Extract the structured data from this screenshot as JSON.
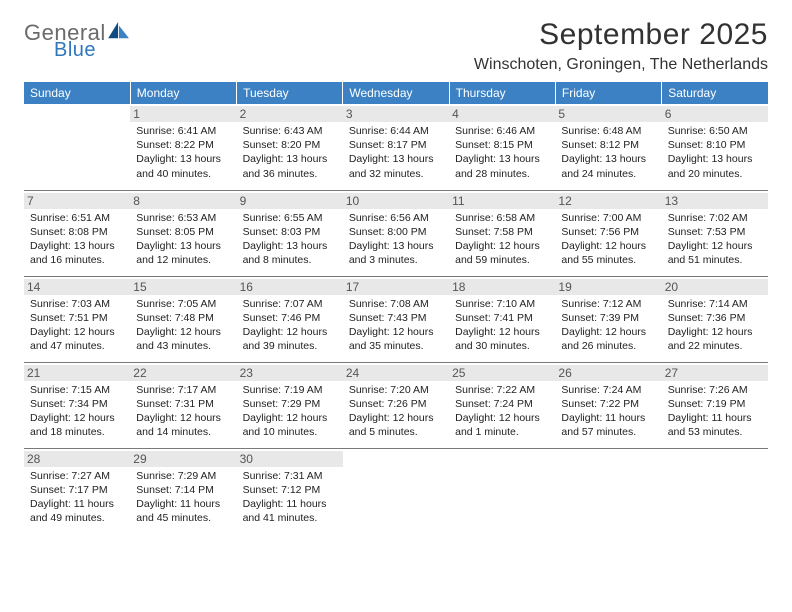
{
  "logo": {
    "word1": "General",
    "word2": "Blue"
  },
  "title": "September 2025",
  "location": "Winschoten, Groningen, The Netherlands",
  "day_headers": [
    "Sunday",
    "Monday",
    "Tuesday",
    "Wednesday",
    "Thursday",
    "Friday",
    "Saturday"
  ],
  "colors": {
    "header_bg": "#3b81c3",
    "header_text": "#ffffff",
    "daynum_bg": "#e8e8e8",
    "cell_border": "#7a7a7a",
    "logo_gray": "#6a6a6a",
    "logo_blue": "#2f77bd",
    "sail_dark": "#0f4c81",
    "sail_light": "#3b81c3"
  },
  "weeks": [
    [
      {
        "n": "",
        "sunrise": "",
        "sunset": "",
        "daylight": ""
      },
      {
        "n": "1",
        "sunrise": "Sunrise: 6:41 AM",
        "sunset": "Sunset: 8:22 PM",
        "daylight": "Daylight: 13 hours and 40 minutes."
      },
      {
        "n": "2",
        "sunrise": "Sunrise: 6:43 AM",
        "sunset": "Sunset: 8:20 PM",
        "daylight": "Daylight: 13 hours and 36 minutes."
      },
      {
        "n": "3",
        "sunrise": "Sunrise: 6:44 AM",
        "sunset": "Sunset: 8:17 PM",
        "daylight": "Daylight: 13 hours and 32 minutes."
      },
      {
        "n": "4",
        "sunrise": "Sunrise: 6:46 AM",
        "sunset": "Sunset: 8:15 PM",
        "daylight": "Daylight: 13 hours and 28 minutes."
      },
      {
        "n": "5",
        "sunrise": "Sunrise: 6:48 AM",
        "sunset": "Sunset: 8:12 PM",
        "daylight": "Daylight: 13 hours and 24 minutes."
      },
      {
        "n": "6",
        "sunrise": "Sunrise: 6:50 AM",
        "sunset": "Sunset: 8:10 PM",
        "daylight": "Daylight: 13 hours and 20 minutes."
      }
    ],
    [
      {
        "n": "7",
        "sunrise": "Sunrise: 6:51 AM",
        "sunset": "Sunset: 8:08 PM",
        "daylight": "Daylight: 13 hours and 16 minutes."
      },
      {
        "n": "8",
        "sunrise": "Sunrise: 6:53 AM",
        "sunset": "Sunset: 8:05 PM",
        "daylight": "Daylight: 13 hours and 12 minutes."
      },
      {
        "n": "9",
        "sunrise": "Sunrise: 6:55 AM",
        "sunset": "Sunset: 8:03 PM",
        "daylight": "Daylight: 13 hours and 8 minutes."
      },
      {
        "n": "10",
        "sunrise": "Sunrise: 6:56 AM",
        "sunset": "Sunset: 8:00 PM",
        "daylight": "Daylight: 13 hours and 3 minutes."
      },
      {
        "n": "11",
        "sunrise": "Sunrise: 6:58 AM",
        "sunset": "Sunset: 7:58 PM",
        "daylight": "Daylight: 12 hours and 59 minutes."
      },
      {
        "n": "12",
        "sunrise": "Sunrise: 7:00 AM",
        "sunset": "Sunset: 7:56 PM",
        "daylight": "Daylight: 12 hours and 55 minutes."
      },
      {
        "n": "13",
        "sunrise": "Sunrise: 7:02 AM",
        "sunset": "Sunset: 7:53 PM",
        "daylight": "Daylight: 12 hours and 51 minutes."
      }
    ],
    [
      {
        "n": "14",
        "sunrise": "Sunrise: 7:03 AM",
        "sunset": "Sunset: 7:51 PM",
        "daylight": "Daylight: 12 hours and 47 minutes."
      },
      {
        "n": "15",
        "sunrise": "Sunrise: 7:05 AM",
        "sunset": "Sunset: 7:48 PM",
        "daylight": "Daylight: 12 hours and 43 minutes."
      },
      {
        "n": "16",
        "sunrise": "Sunrise: 7:07 AM",
        "sunset": "Sunset: 7:46 PM",
        "daylight": "Daylight: 12 hours and 39 minutes."
      },
      {
        "n": "17",
        "sunrise": "Sunrise: 7:08 AM",
        "sunset": "Sunset: 7:43 PM",
        "daylight": "Daylight: 12 hours and 35 minutes."
      },
      {
        "n": "18",
        "sunrise": "Sunrise: 7:10 AM",
        "sunset": "Sunset: 7:41 PM",
        "daylight": "Daylight: 12 hours and 30 minutes."
      },
      {
        "n": "19",
        "sunrise": "Sunrise: 7:12 AM",
        "sunset": "Sunset: 7:39 PM",
        "daylight": "Daylight: 12 hours and 26 minutes."
      },
      {
        "n": "20",
        "sunrise": "Sunrise: 7:14 AM",
        "sunset": "Sunset: 7:36 PM",
        "daylight": "Daylight: 12 hours and 22 minutes."
      }
    ],
    [
      {
        "n": "21",
        "sunrise": "Sunrise: 7:15 AM",
        "sunset": "Sunset: 7:34 PM",
        "daylight": "Daylight: 12 hours and 18 minutes."
      },
      {
        "n": "22",
        "sunrise": "Sunrise: 7:17 AM",
        "sunset": "Sunset: 7:31 PM",
        "daylight": "Daylight: 12 hours and 14 minutes."
      },
      {
        "n": "23",
        "sunrise": "Sunrise: 7:19 AM",
        "sunset": "Sunset: 7:29 PM",
        "daylight": "Daylight: 12 hours and 10 minutes."
      },
      {
        "n": "24",
        "sunrise": "Sunrise: 7:20 AM",
        "sunset": "Sunset: 7:26 PM",
        "daylight": "Daylight: 12 hours and 5 minutes."
      },
      {
        "n": "25",
        "sunrise": "Sunrise: 7:22 AM",
        "sunset": "Sunset: 7:24 PM",
        "daylight": "Daylight: 12 hours and 1 minute."
      },
      {
        "n": "26",
        "sunrise": "Sunrise: 7:24 AM",
        "sunset": "Sunset: 7:22 PM",
        "daylight": "Daylight: 11 hours and 57 minutes."
      },
      {
        "n": "27",
        "sunrise": "Sunrise: 7:26 AM",
        "sunset": "Sunset: 7:19 PM",
        "daylight": "Daylight: 11 hours and 53 minutes."
      }
    ],
    [
      {
        "n": "28",
        "sunrise": "Sunrise: 7:27 AM",
        "sunset": "Sunset: 7:17 PM",
        "daylight": "Daylight: 11 hours and 49 minutes."
      },
      {
        "n": "29",
        "sunrise": "Sunrise: 7:29 AM",
        "sunset": "Sunset: 7:14 PM",
        "daylight": "Daylight: 11 hours and 45 minutes."
      },
      {
        "n": "30",
        "sunrise": "Sunrise: 7:31 AM",
        "sunset": "Sunset: 7:12 PM",
        "daylight": "Daylight: 11 hours and 41 minutes."
      },
      {
        "n": "",
        "sunrise": "",
        "sunset": "",
        "daylight": ""
      },
      {
        "n": "",
        "sunrise": "",
        "sunset": "",
        "daylight": ""
      },
      {
        "n": "",
        "sunrise": "",
        "sunset": "",
        "daylight": ""
      },
      {
        "n": "",
        "sunrise": "",
        "sunset": "",
        "daylight": ""
      }
    ]
  ]
}
